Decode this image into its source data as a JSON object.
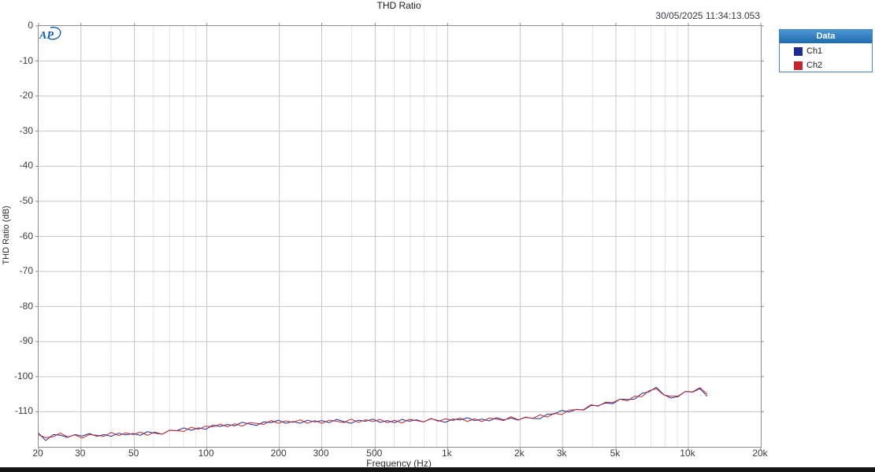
{
  "header": {
    "title": "THD Ratio",
    "timestamp": "30/05/2025 11:34:13.053"
  },
  "logo": {
    "text": "AP"
  },
  "legend": {
    "title": "Data",
    "items": [
      {
        "label": "Ch1",
        "color": "#1f2b8e"
      },
      {
        "label": "Ch2",
        "color": "#c22730"
      }
    ]
  },
  "colors": {
    "grid_major": "#c6c6c6",
    "grid_minor": "#e3e3e3",
    "plot_border": "#8c8c8c",
    "logo_blue": "#0f5fa8"
  },
  "chart_data": {
    "type": "line",
    "title": "THD Ratio",
    "xlabel": "Frequency (Hz)",
    "ylabel": "THD Ratio (dB)",
    "x_scale": "log",
    "xlim": [
      20,
      20000
    ],
    "ylim": [
      -120,
      0
    ],
    "grid": true,
    "legend_position": "right",
    "x_ticks": [
      {
        "value": 20,
        "label": "20"
      },
      {
        "value": 30,
        "label": "30"
      },
      {
        "value": 50,
        "label": "50"
      },
      {
        "value": 100,
        "label": "100"
      },
      {
        "value": 200,
        "label": "200"
      },
      {
        "value": 300,
        "label": "300"
      },
      {
        "value": 500,
        "label": "500"
      },
      {
        "value": 1000,
        "label": "1k"
      },
      {
        "value": 2000,
        "label": "2k"
      },
      {
        "value": 3000,
        "label": "3k"
      },
      {
        "value": 5000,
        "label": "5k"
      },
      {
        "value": 10000,
        "label": "10k"
      },
      {
        "value": 20000,
        "label": "20k"
      }
    ],
    "y_ticks": [
      {
        "value": 0,
        "label": "0"
      },
      {
        "value": -10,
        "label": "-10"
      },
      {
        "value": -20,
        "label": "-20"
      },
      {
        "value": -30,
        "label": "-30"
      },
      {
        "value": -40,
        "label": "-40"
      },
      {
        "value": -50,
        "label": "-50"
      },
      {
        "value": -60,
        "label": "-60"
      },
      {
        "value": -70,
        "label": "-70"
      },
      {
        "value": -80,
        "label": "-80"
      },
      {
        "value": -90,
        "label": "-90"
      },
      {
        "value": -100,
        "label": "-100"
      },
      {
        "value": -110,
        "label": "-110"
      }
    ],
    "freqs": [
      20,
      21.4,
      23,
      24.6,
      26.4,
      28.3,
      30.3,
      32.5,
      34.9,
      37.4,
      40.1,
      43,
      46.1,
      49.4,
      52.9,
      56.7,
      60.8,
      65.2,
      69.9,
      74.9,
      80.3,
      86.1,
      92.3,
      98.9,
      106,
      113.7,
      121.8,
      130.6,
      140,
      150.1,
      160.9,
      172.5,
      184.9,
      198.2,
      212.4,
      227.7,
      244.1,
      261.7,
      280.5,
      300.7,
      322.4,
      345.6,
      370.4,
      397.1,
      425.7,
      456.3,
      489.2,
      524.4,
      562.2,
      602.6,
      646,
      692.5,
      742.4,
      795.8,
      853.1,
      914.5,
      980.4,
      1051,
      1127,
      1208,
      1295,
      1388,
      1488,
      1595,
      1710,
      1833,
      1965,
      2106,
      2258,
      2420,
      2595,
      2782,
      2982,
      3196,
      3426,
      3673,
      3938,
      4221,
      4525,
      4851,
      5200,
      5575,
      5976,
      6406,
      6867,
      7362,
      7892,
      8460,
      9069,
      9722,
      10421,
      11172,
      11976
    ],
    "series": [
      {
        "name": "Ch1",
        "color": "#1f2b8e",
        "db": [
          -116.1,
          -118.2,
          -116.5,
          -116.7,
          -117.3,
          -116.5,
          -116.9,
          -116.2,
          -117.0,
          -116.5,
          -117.0,
          -116.1,
          -116.6,
          -116.2,
          -116.7,
          -115.7,
          -116.1,
          -116.4,
          -115.3,
          -115.4,
          -114.6,
          -115.3,
          -114.6,
          -115.0,
          -113.8,
          -114.2,
          -113.6,
          -114.0,
          -113.0,
          -113.5,
          -113.9,
          -112.9,
          -113.1,
          -112.4,
          -113.3,
          -112.8,
          -113.3,
          -112.4,
          -112.9,
          -112.5,
          -113.1,
          -112.2,
          -112.8,
          -113.3,
          -112.4,
          -112.7,
          -112.1,
          -113.0,
          -112.5,
          -113.1,
          -112.2,
          -112.7,
          -112.3,
          -112.9,
          -112.0,
          -112.5,
          -113.0,
          -112.1,
          -112.3,
          -111.7,
          -112.5,
          -112.1,
          -112.6,
          -111.7,
          -112.3,
          -111.8,
          -112.4,
          -111.5,
          -111.9,
          -112.0,
          -110.7,
          -110.6,
          -109.6,
          -110.1,
          -109.3,
          -109.5,
          -108.2,
          -108.3,
          -107.5,
          -107.7,
          -106.4,
          -106.5,
          -106.4,
          -104.8,
          -104.3,
          -103.0,
          -105.1,
          -106.1,
          -105.7,
          -104.2,
          -104.4,
          -103.4,
          -105.6
        ]
      },
      {
        "name": "Ch2",
        "color": "#c22730",
        "db": [
          -116.6,
          -117.4,
          -117.1,
          -116.1,
          -117.2,
          -116.6,
          -117.5,
          -116.5,
          -116.7,
          -117.0,
          -115.9,
          -116.8,
          -116.0,
          -116.5,
          -115.8,
          -116.7,
          -115.8,
          -116.4,
          -115.3,
          -115.4,
          -115.6,
          -114.4,
          -115.0,
          -114.1,
          -114.3,
          -113.5,
          -114.3,
          -113.4,
          -114.1,
          -113.1,
          -113.3,
          -113.6,
          -112.5,
          -113.3,
          -112.6,
          -113.0,
          -112.3,
          -113.3,
          -112.5,
          -113.3,
          -112.4,
          -112.7,
          -113.1,
          -112.1,
          -113.0,
          -112.3,
          -112.8,
          -112.2,
          -113.1,
          -112.4,
          -113.2,
          -112.2,
          -112.5,
          -112.9,
          -111.9,
          -112.7,
          -112.0,
          -112.5,
          -111.8,
          -112.8,
          -112.0,
          -112.8,
          -111.8,
          -112.1,
          -112.5,
          -111.4,
          -112.3,
          -111.6,
          -111.9,
          -110.9,
          -111.5,
          -110.4,
          -110.8,
          -109.5,
          -109.4,
          -109.4,
          -108.0,
          -108.4,
          -107.3,
          -107.4,
          -106.4,
          -106.9,
          -105.6,
          -105.7,
          -104.0,
          -103.4,
          -105.2,
          -105.6,
          -105.5,
          -104.2,
          -104.3,
          -103.1,
          -105.0
        ]
      }
    ]
  }
}
